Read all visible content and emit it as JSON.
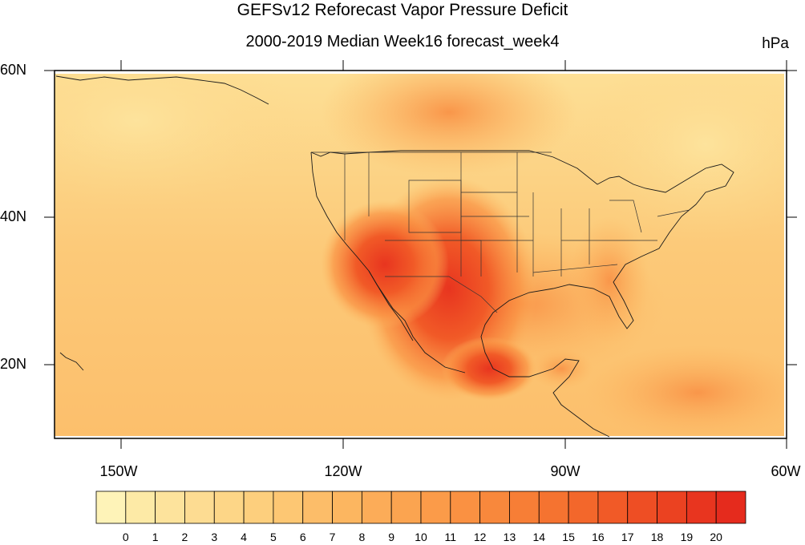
{
  "title": "GEFSv12 Reforecast Vapor Pressure Deficit",
  "subtitle": "2000-2019 Median Week16 forecast_week4",
  "units": "hPa",
  "map": {
    "lat_labels": [
      "60N",
      "40N",
      "20N"
    ],
    "lon_labels": [
      "150W",
      "120W",
      "90W",
      "60W"
    ],
    "extent": {
      "lon": [
        -160,
        -60
      ],
      "lat": [
        10,
        60
      ]
    }
  },
  "colorbar": {
    "labels": [
      "0",
      "1",
      "2",
      "3",
      "4",
      "5",
      "6",
      "7",
      "8",
      "9",
      "10",
      "11",
      "12",
      "13",
      "14",
      "15",
      "16",
      "17",
      "18",
      "19",
      "20"
    ],
    "colors": [
      "#fef3b8",
      "#fdeaa6",
      "#fde39c",
      "#fddc92",
      "#fdd687",
      "#fdcf7d",
      "#fdc773",
      "#fcbd69",
      "#fcb660",
      "#fcac58",
      "#fba450",
      "#fb9b49",
      "#fa9142",
      "#f8883c",
      "#f77e36",
      "#f57330",
      "#f3672b",
      "#f15a27",
      "#ee4e24",
      "#eb4221",
      "#e8351f",
      "#e52b1d"
    ]
  }
}
